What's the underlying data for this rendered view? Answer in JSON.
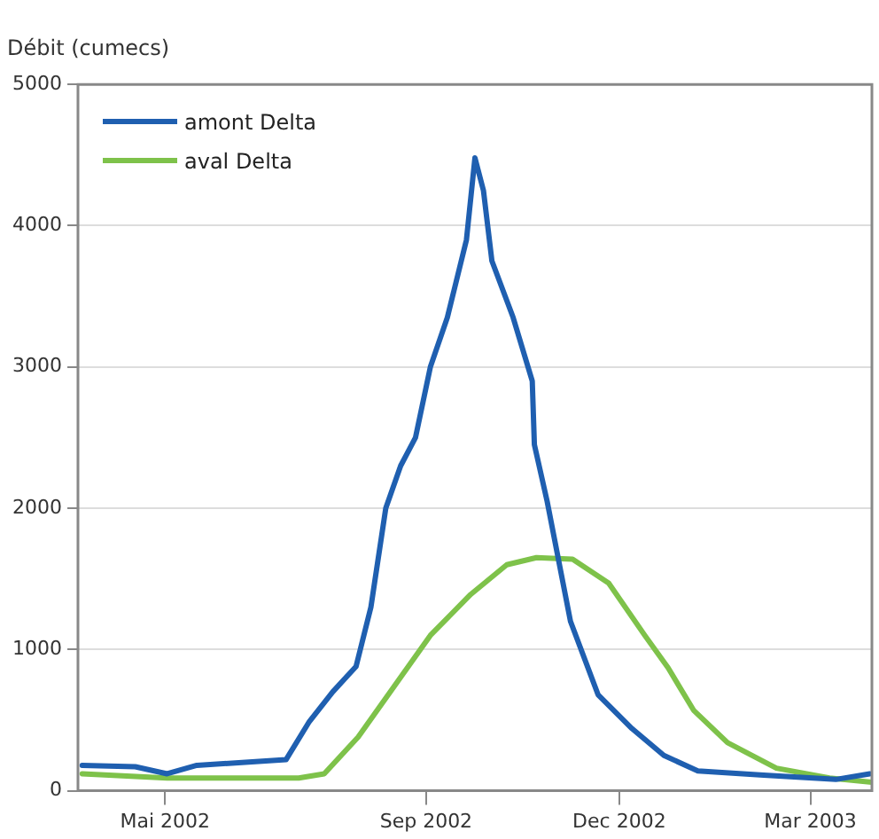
{
  "chart_data": {
    "type": "line",
    "ylabel": "Débit (cumecs)",
    "xlim": [
      "2002-03-21",
      "2003-03-30"
    ],
    "xticks": [
      {
        "value": "2002-05-01",
        "label": "Mai 2002"
      },
      {
        "value": "2002-09-01",
        "label": "Sep 2002"
      },
      {
        "value": "2002-12-01",
        "label": "Dec 2002"
      },
      {
        "value": "2003-03-01",
        "label": "Mar 2003"
      }
    ],
    "ylim": [
      0,
      5000
    ],
    "yticks": [
      0,
      1000,
      2000,
      3000,
      4000,
      5000
    ],
    "grid": "y",
    "legend": "top left",
    "marker": "none",
    "line_style": "solid",
    "series": [
      {
        "name": "amont Delta",
        "color": "#1f5fb0",
        "x": [
          "2002-03-23",
          "2002-04-17",
          "2002-05-02",
          "2002-05-16",
          "2002-06-27",
          "2002-07-08",
          "2002-07-19",
          "2002-07-30",
          "2002-08-06",
          "2002-08-13",
          "2002-08-20",
          "2002-08-27",
          "2002-09-03",
          "2002-09-11",
          "2002-09-20",
          "2002-09-24",
          "2002-09-28",
          "2002-10-02",
          "2002-10-12",
          "2002-10-21",
          "2002-10-22",
          "2002-10-28",
          "2002-11-08",
          "2002-11-21",
          "2002-12-07",
          "2002-12-22",
          "2003-01-07",
          "2003-02-07",
          "2003-03-13",
          "2003-03-29"
        ],
        "values": [
          180,
          170,
          120,
          180,
          220,
          490,
          700,
          880,
          1300,
          2000,
          2300,
          2500,
          3000,
          3350,
          3900,
          4480,
          4250,
          3750,
          3350,
          2900,
          2450,
          2050,
          1200,
          680,
          440,
          250,
          140,
          110,
          80,
          120
        ]
      },
      {
        "name": "aval Delta",
        "color": "#7ec24a",
        "x": [
          "2002-03-23",
          "2002-05-02",
          "2002-07-03",
          "2002-07-15",
          "2002-07-31",
          "2002-08-17",
          "2002-09-03",
          "2002-09-22",
          "2002-10-09",
          "2002-10-23",
          "2002-11-09",
          "2002-11-26",
          "2002-12-13",
          "2002-12-24",
          "2003-01-05",
          "2003-01-21",
          "2003-02-13",
          "2003-03-10",
          "2003-03-30"
        ],
        "values": [
          120,
          90,
          90,
          120,
          380,
          740,
          1100,
          1390,
          1600,
          1650,
          1640,
          1470,
          1100,
          870,
          570,
          340,
          160,
          90,
          60
        ]
      }
    ]
  }
}
